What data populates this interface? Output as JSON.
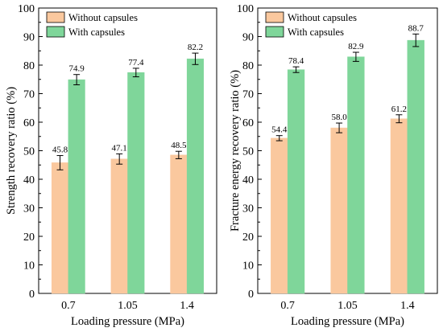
{
  "chart_data": [
    {
      "type": "bar",
      "categories": [
        "0.7",
        "1.05",
        "1.4"
      ],
      "series": [
        {
          "name": "Without capsules",
          "values": [
            45.8,
            47.1,
            48.5
          ],
          "errors": [
            2.5,
            1.8,
            1.3
          ],
          "color": "#fac89e"
        },
        {
          "name": "With capsules",
          "values": [
            74.9,
            77.4,
            82.2
          ],
          "errors": [
            1.8,
            1.5,
            2.0
          ],
          "color": "#7fd69a"
        }
      ],
      "data_labels": [
        [
          "45.8",
          "47.1",
          "48.5"
        ],
        [
          "74.9",
          "77.4",
          "82.2"
        ]
      ],
      "xlabel": "Loading pressure (MPa)",
      "ylabel": "Strength recovery ratio (%)",
      "ylim": [
        0,
        100
      ],
      "yticks": [
        "0",
        "10",
        "20",
        "30",
        "40",
        "50",
        "60",
        "70",
        "80",
        "90",
        "100"
      ],
      "grid": false,
      "legend_position": "top-left"
    },
    {
      "type": "bar",
      "categories": [
        "0.7",
        "1.05",
        "1.4"
      ],
      "series": [
        {
          "name": "Without capsules",
          "values": [
            54.4,
            58.0,
            61.2
          ],
          "errors": [
            0.9,
            1.7,
            1.4
          ],
          "color": "#fac89e"
        },
        {
          "name": "With capsules",
          "values": [
            78.4,
            82.9,
            88.7
          ],
          "errors": [
            1.0,
            1.6,
            2.2
          ],
          "color": "#7fd69a"
        }
      ],
      "data_labels": [
        [
          "54.4",
          "58.0",
          "61.2"
        ],
        [
          "78.4",
          "82.9",
          "88.7"
        ]
      ],
      "xlabel": "Loading pressure (MPa)",
      "ylabel": "Fracture energy recovery ratio (%)",
      "ylim": [
        0,
        100
      ],
      "yticks": [
        "0",
        "10",
        "20",
        "30",
        "40",
        "50",
        "60",
        "70",
        "80",
        "90",
        "100"
      ],
      "grid": false,
      "legend_position": "top-left"
    }
  ]
}
